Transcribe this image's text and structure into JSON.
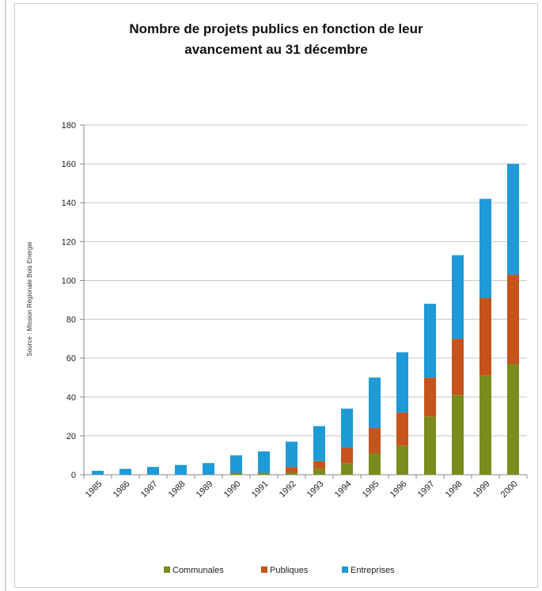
{
  "chart_data": {
    "type": "bar",
    "stacked": true,
    "title_line1": "Nombre de projets publics en fonction de leur",
    "title_line2": "avancement au 31 décembre",
    "source_note": "Source : Mission Régionale Bois Energie",
    "categories": [
      "1985",
      "1986",
      "1987",
      "1988",
      "1989",
      "1990",
      "1991",
      "1992",
      "1993",
      "1994",
      "1995",
      "1996",
      "1997",
      "1998",
      "1999",
      "2000"
    ],
    "ylim": [
      0,
      180
    ],
    "yticks": [
      0,
      20,
      40,
      60,
      80,
      100,
      120,
      140,
      160,
      180
    ],
    "grid": true,
    "legend_position": "bottom",
    "series": [
      {
        "name": "Communales",
        "color": "#7a8c1e",
        "values": [
          0,
          0,
          0,
          0,
          0,
          1,
          1,
          1,
          3,
          6,
          11,
          15,
          30,
          41,
          51,
          57
        ]
      },
      {
        "name": "Publiques",
        "color": "#c5541c",
        "values": [
          0,
          0,
          0,
          0,
          0,
          0,
          0,
          3,
          4,
          8,
          13,
          17,
          20,
          29,
          40,
          46
        ]
      },
      {
        "name": "Entreprises",
        "color": "#1e9ad6",
        "values": [
          2,
          3,
          4,
          5,
          6,
          9,
          11,
          13,
          18,
          20,
          26,
          31,
          38,
          43,
          51,
          57
        ]
      }
    ]
  }
}
